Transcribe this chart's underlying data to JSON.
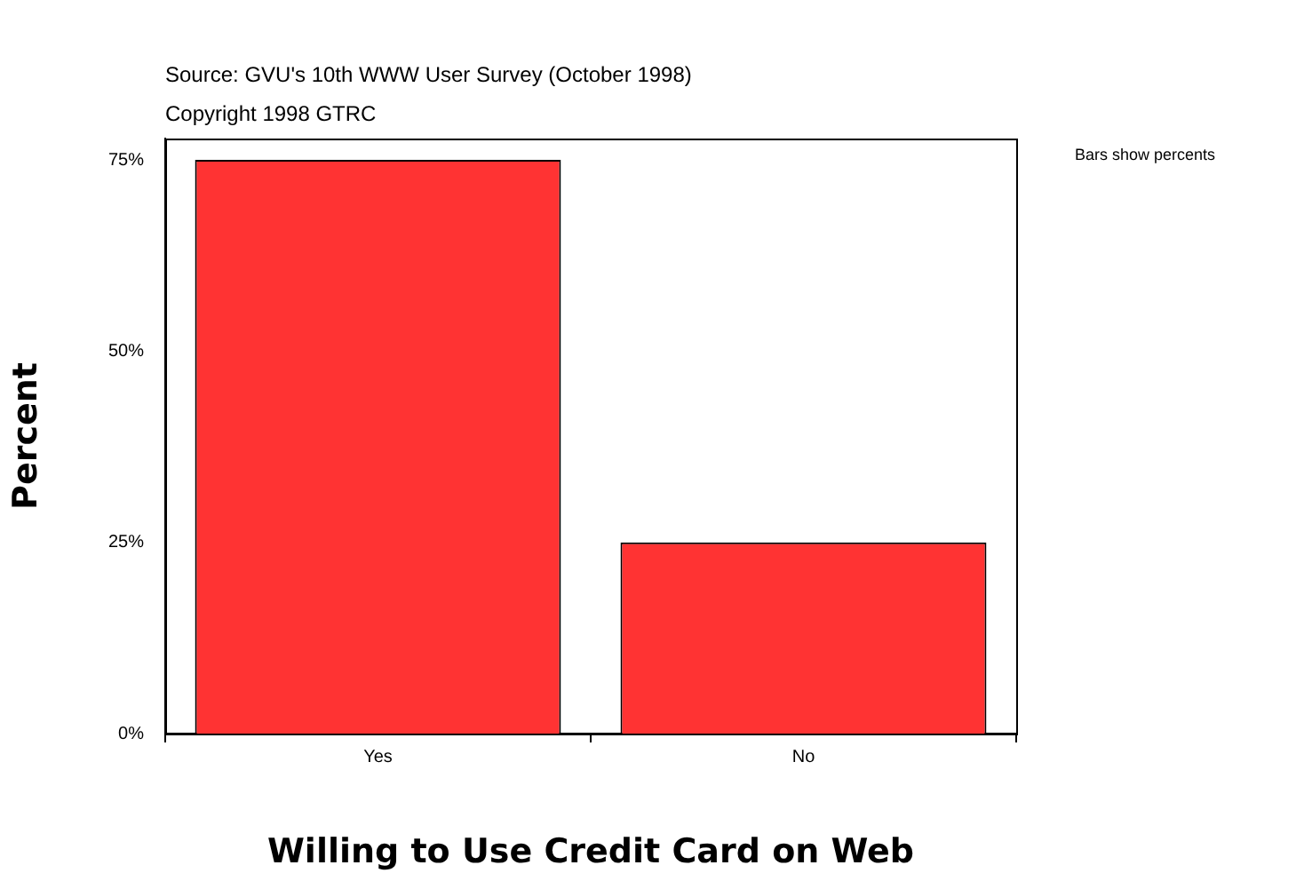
{
  "chart_data": {
    "type": "bar",
    "xlabel": "Willing to Use Credit Card on Web",
    "ylabel": "Percent",
    "categories": [
      "Yes",
      "No"
    ],
    "values": [
      75,
      25
    ],
    "color": "#ff3333",
    "ylim": [
      0,
      77.8
    ],
    "yticks": [
      {
        "value": 0,
        "label": "0%"
      },
      {
        "value": 25,
        "label": "25%"
      },
      {
        "value": 50,
        "label": "50%"
      },
      {
        "value": 75,
        "label": "75%"
      }
    ],
    "grid": false,
    "legend": false,
    "annotations": [
      "Source: GVU's 10th WWW User Survey (October 1998)",
      "Copyright 1998 GTRC",
      "Bars show percents"
    ]
  }
}
